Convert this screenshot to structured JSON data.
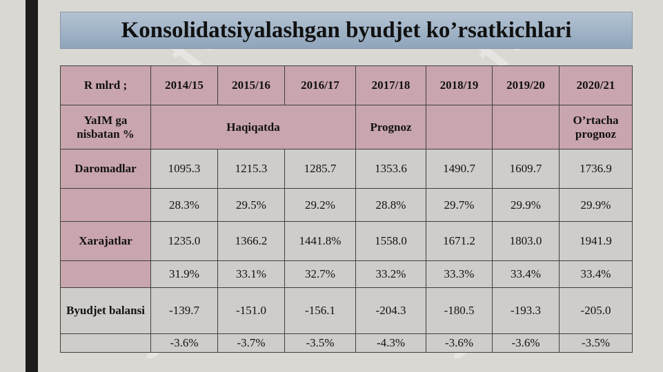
{
  "title": "Konsolidatsiyalashgan byudjet ko’rsatkichlari",
  "watermark_text": "soft",
  "colors": {
    "header_pink": "#c9a5ae",
    "cell_grey": "#cecdc9",
    "title_blue": "#a4b6c9"
  },
  "table": {
    "corner": "R mlrd ;",
    "years": [
      "2014/15",
      "2015/16",
      "2016/17",
      "2017/18",
      "2018/19",
      "2019/20",
      "2020/21"
    ],
    "ratio_label": "YaIM ga nisbatan %",
    "actual_label": "Haqiqatda",
    "forecast_label": "Prognoz",
    "empty_label": "",
    "avg_forecast_label": "O’rtacha prognoz",
    "rows": [
      {
        "label": "Daromadlar",
        "values": [
          "1095.3",
          "1215.3",
          "1285.7",
          "1353.6",
          "1490.7",
          "1609.7",
          "1736.9"
        ]
      },
      {
        "label": "",
        "values": [
          "28.3%",
          "29.5%",
          "29.2%",
          "28.8%",
          "29.7%",
          "29.9%",
          "29.9%"
        ]
      },
      {
        "label": "Xarajatlar",
        "values": [
          "1235.0",
          "1366.2",
          "1441.8%",
          "1558.0",
          "1671.2",
          "1803.0",
          "1941.9"
        ]
      },
      {
        "label": "",
        "values": [
          "31.9%",
          "33.1%",
          "32.7%",
          "33.2%",
          "33.3%",
          "33.4%",
          "33.4%"
        ]
      },
      {
        "label": "Byudjet balansi",
        "values": [
          "-139.7",
          "-151.0",
          "-156.1",
          "-204.3",
          "-180.5",
          "-193.3",
          "-205.0"
        ]
      },
      {
        "label": "",
        "values": [
          "-3.6%",
          "-3.7%",
          "-3.5%",
          "-4.3%",
          "-3.6%",
          "-3.6%",
          "-3.5%"
        ]
      }
    ]
  }
}
